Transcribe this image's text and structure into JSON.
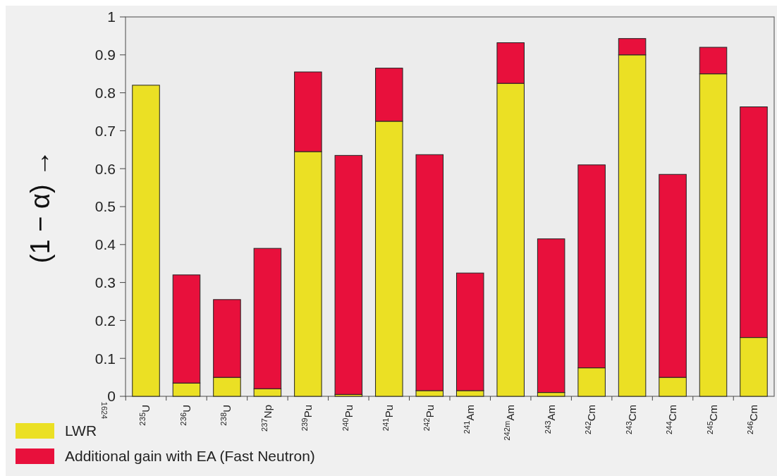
{
  "chart_data": {
    "type": "bar",
    "stacked": true,
    "ylabel": "(1 − α) →",
    "categories": [
      "$^{235}$U",
      "$^{236}$U",
      "$^{238}$U",
      "$^{237}$Np",
      "$^{239}$Pu",
      "$^{240}$Pu",
      "$^{241}$Pu",
      "$^{242}$Pu",
      "$^{241}$Am",
      "$^{242m}$Am",
      "$^{243}$Am",
      "$^{242}$Cm",
      "$^{243}$Cm",
      "$^{244}$Cm",
      "$^{245}$Cm",
      "$^{246}$Cm"
    ],
    "series": [
      {
        "name": "LWR",
        "color": "#ebe024",
        "values": [
          0.82,
          0.035,
          0.05,
          0.02,
          0.645,
          0.005,
          0.725,
          0.015,
          0.015,
          0.825,
          0.01,
          0.075,
          0.9,
          0.05,
          0.85,
          0.155
        ]
      },
      {
        "name": "Additional gain with EA (Fast Neutron)",
        "color": "#e8103c",
        "values": [
          0,
          0.285,
          0.205,
          0.37,
          0.21,
          0.63,
          0.14,
          0.622,
          0.31,
          0.107,
          0.405,
          0.535,
          0.043,
          0.535,
          0.07,
          0.608
        ]
      }
    ],
    "ylim": [
      0,
      1
    ],
    "yticks": [
      0,
      0.1,
      0.2,
      0.3,
      0.4,
      0.5,
      0.6,
      0.7,
      0.8,
      0.9,
      1
    ],
    "legend": "bottom left",
    "annotations": [
      "1624"
    ]
  }
}
